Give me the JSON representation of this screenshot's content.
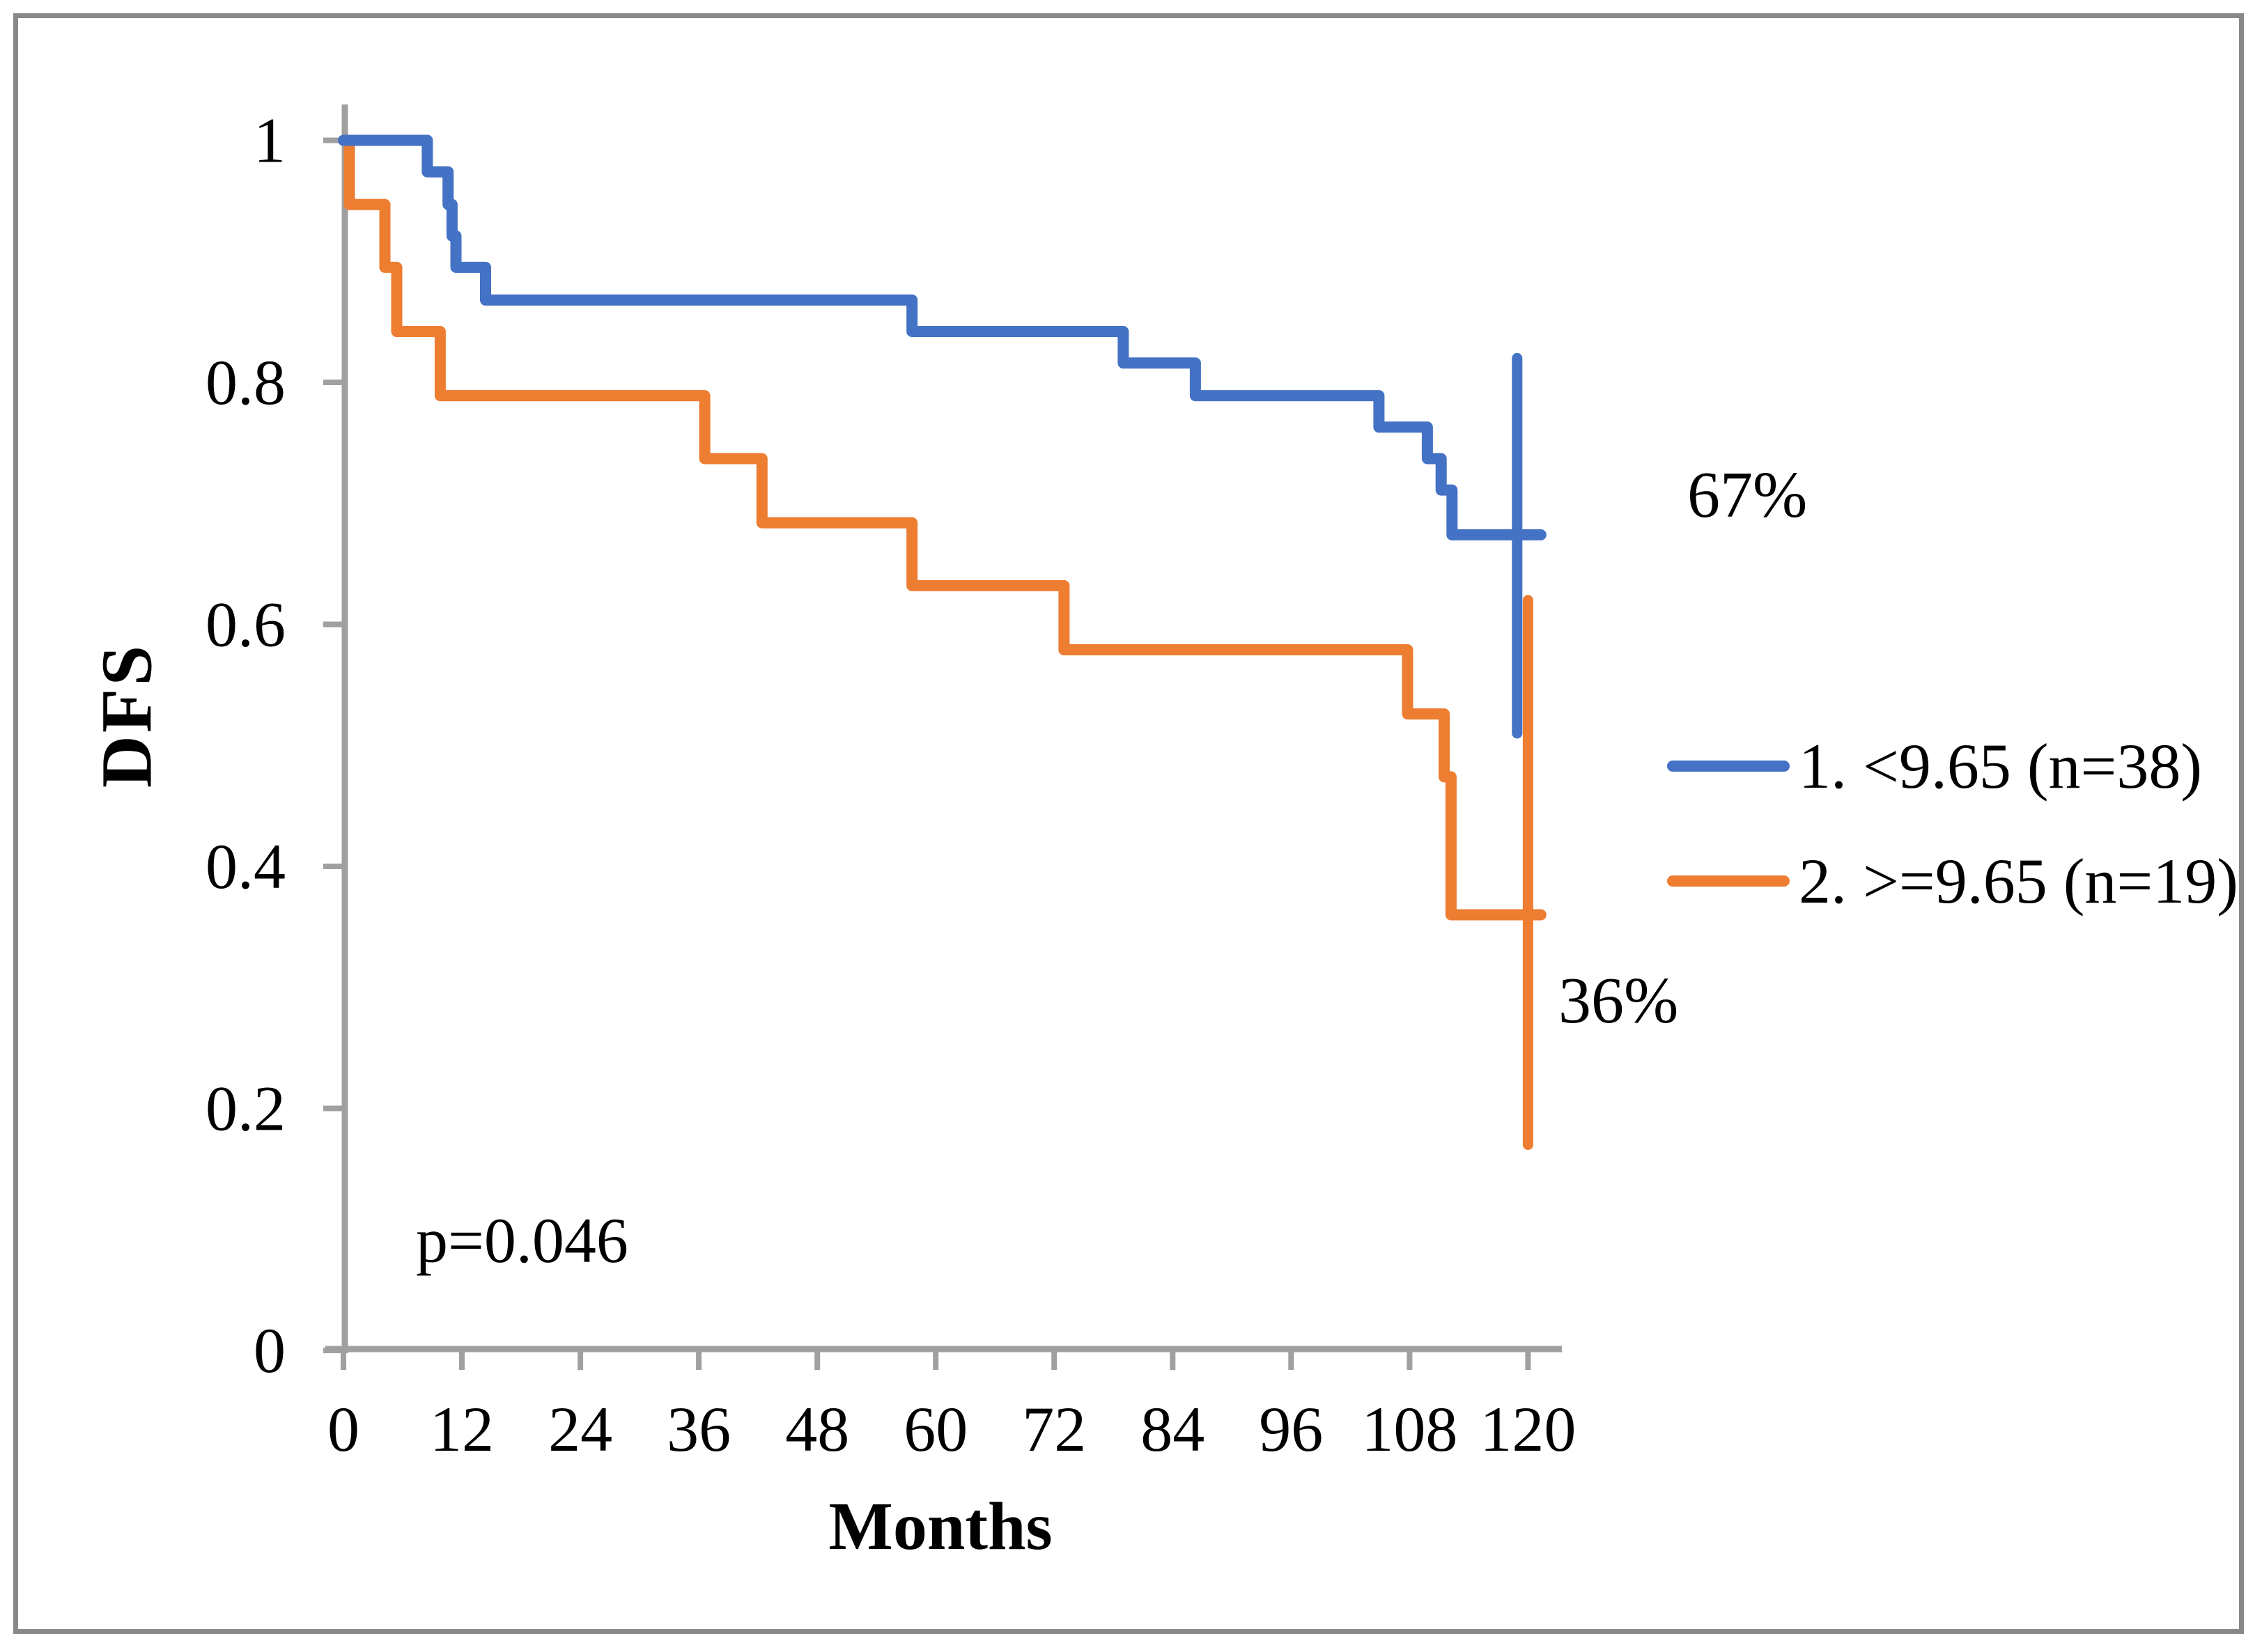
{
  "figure": {
    "background": "#ffffff",
    "border_color": "#898989"
  },
  "chart_data": {
    "type": "line",
    "subtype": "kaplan_meier_step",
    "title": "",
    "xlabel": "Months",
    "ylabel": "DFS",
    "xlim": [
      0,
      120
    ],
    "ylim": [
      0,
      1
    ],
    "xticks": [
      0,
      12,
      24,
      36,
      48,
      60,
      72,
      84,
      96,
      108,
      120
    ],
    "yticks": [
      0,
      0.2,
      0.4,
      0.6,
      0.8,
      1
    ],
    "ytick_labels": [
      "0",
      "0.2",
      "0.4",
      "0.6",
      "0.8",
      "1"
    ],
    "grid": false,
    "axis_color": "#a0a0a0",
    "legend_position": "right-middle",
    "series": [
      {
        "name": "1. <9.65 (n=38)",
        "color": "#4472C4",
        "final_label": "67%",
        "points": [
          [
            0,
            1.0
          ],
          [
            8.5,
            0.974
          ],
          [
            10.6,
            0.947
          ],
          [
            11.0,
            0.921
          ],
          [
            11.4,
            0.895
          ],
          [
            14.4,
            0.868
          ],
          [
            57.6,
            0.842
          ],
          [
            79.0,
            0.816
          ],
          [
            86.3,
            0.789
          ],
          [
            104.9,
            0.763
          ],
          [
            109.8,
            0.737
          ],
          [
            111.2,
            0.711
          ],
          [
            112.3,
            0.674
          ],
          [
            121.3,
            0.674
          ]
        ],
        "error_bar": {
          "x": 118.9,
          "low": 0.51,
          "high": 0.82
        }
      },
      {
        "name": "2. >=9.65 (n=19)",
        "color": "#ED7D31",
        "final_label": "36%",
        "points": [
          [
            0,
            1.0
          ],
          [
            0.6,
            0.947
          ],
          [
            4.2,
            0.895
          ],
          [
            5.4,
            0.842
          ],
          [
            9.8,
            0.789
          ],
          [
            36.6,
            0.737
          ],
          [
            42.4,
            0.684
          ],
          [
            57.6,
            0.632
          ],
          [
            73.0,
            0.579
          ],
          [
            107.8,
            0.526
          ],
          [
            111.5,
            0.474
          ],
          [
            112.2,
            0.36
          ],
          [
            121.3,
            0.36
          ]
        ],
        "error_bar": {
          "x": 120.0,
          "low": 0.17,
          "high": 0.62
        }
      }
    ],
    "annotations": {
      "p_value": {
        "text": "p=0.046",
        "x": 7.3,
        "y": 0.09
      },
      "group1_final": {
        "text": "67%",
        "x": 136,
        "y": 0.71
      },
      "group2_final": {
        "text": "36%",
        "x": 123,
        "y": 0.29
      }
    }
  }
}
